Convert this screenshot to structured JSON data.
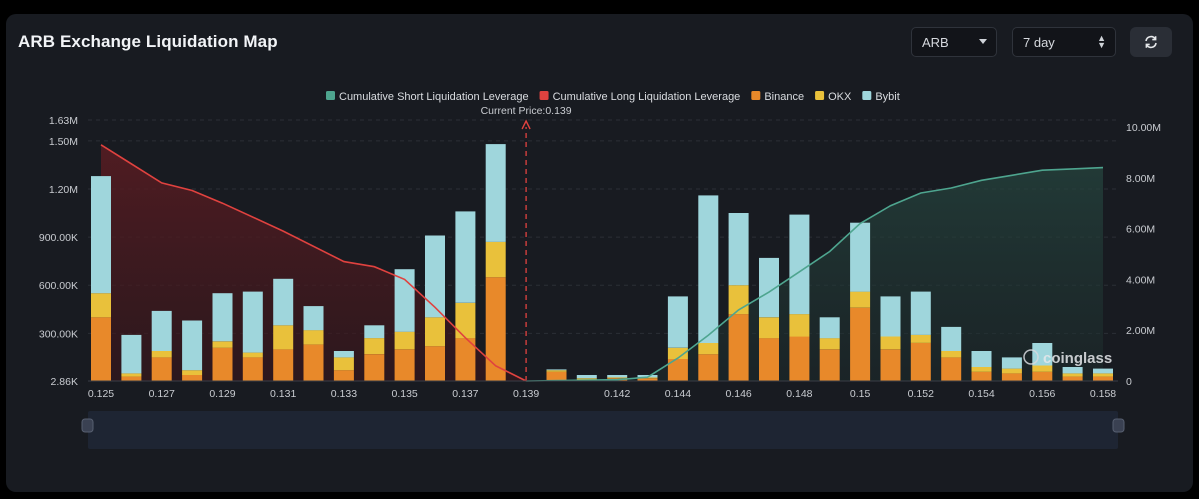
{
  "header": {
    "title": "ARB Exchange Liquidation Map",
    "asset_select": "ARB",
    "range_select": "7 day"
  },
  "colors": {
    "binance": "#e8892a",
    "okx": "#e9c13b",
    "bybit": "#9fd6dc",
    "short_line": "#4ea58f",
    "long_line": "#e0423f",
    "background": "#181b21"
  },
  "icons": {
    "asset_caret": "chevron-down-icon",
    "range_caret": "up-down-icon",
    "refresh": "refresh-icon"
  },
  "watermark": "coinglass",
  "chart_data": {
    "type": "bar",
    "stacked": true,
    "current_price": 0.139,
    "current_price_label": "Current Price:0.139",
    "legend_position": "top-center",
    "grid": true,
    "x": [
      0.125,
      0.126,
      0.127,
      0.128,
      0.129,
      0.13,
      0.131,
      0.132,
      0.133,
      0.134,
      0.135,
      0.136,
      0.137,
      0.138,
      0.139,
      0.14,
      0.141,
      0.142,
      0.143,
      0.144,
      0.145,
      0.146,
      0.147,
      0.148,
      0.149,
      0.15,
      0.151,
      0.152,
      0.153,
      0.154,
      0.155,
      0.156,
      0.157,
      0.158
    ],
    "x_tick_labels": [
      "0.125",
      "0.127",
      "0.129",
      "0.131",
      "0.133",
      "0.135",
      "0.137",
      "0.139",
      "0.142",
      "0.144",
      "0.146",
      "0.148",
      "0.15",
      "0.152",
      "0.154",
      "0.156",
      "0.158"
    ],
    "y_left": {
      "ticks": [
        "2.86K",
        "300.00K",
        "600.00K",
        "900.00K",
        "1.20M",
        "1.50M",
        "1.63M"
      ],
      "tick_values": [
        2860,
        300000,
        600000,
        900000,
        1200000,
        1500000,
        1630000
      ],
      "range": [
        2860,
        1630000
      ]
    },
    "y_right": {
      "ticks": [
        "0",
        "2.00M",
        "4.00M",
        "6.00M",
        "8.00M",
        "10.00M"
      ],
      "range": [
        0,
        10000000
      ]
    },
    "legend": [
      "Cumulative Short Liquidation Leverage",
      "Cumulative Long Liquidation Leverage",
      "Binance",
      "OKX",
      "Bybit"
    ],
    "series": [
      {
        "name": "Binance",
        "values": [
          400000,
          30000,
          150000,
          40000,
          210000,
          150000,
          200000,
          230000,
          70000,
          170000,
          200000,
          220000,
          270000,
          650000,
          0,
          60000,
          10000,
          20000,
          20000,
          140000,
          170000,
          420000,
          270000,
          280000,
          200000,
          460000,
          200000,
          240000,
          150000,
          60000,
          50000,
          60000,
          30000,
          30000
        ]
      },
      {
        "name": "OKX",
        "values": [
          150000,
          20000,
          40000,
          30000,
          40000,
          30000,
          150000,
          90000,
          80000,
          100000,
          110000,
          180000,
          220000,
          220000,
          0,
          10000,
          10000,
          5000,
          5000,
          70000,
          70000,
          180000,
          130000,
          140000,
          70000,
          100000,
          80000,
          50000,
          40000,
          30000,
          30000,
          40000,
          20000,
          20000
        ]
      },
      {
        "name": "Bybit",
        "values": [
          730000,
          240000,
          250000,
          310000,
          300000,
          380000,
          290000,
          150000,
          40000,
          80000,
          390000,
          510000,
          570000,
          610000,
          0,
          5000,
          20000,
          15000,
          15000,
          320000,
          920000,
          450000,
          370000,
          620000,
          130000,
          430000,
          250000,
          270000,
          150000,
          100000,
          70000,
          140000,
          40000,
          30000
        ]
      },
      {
        "name": "Cumulative Long Liquidation Leverage",
        "axis": "right",
        "x": [
          0.125,
          0.127,
          0.128,
          0.129,
          0.131,
          0.133,
          0.134,
          0.135,
          0.136,
          0.137,
          0.138,
          0.139
        ],
        "values": [
          9300000,
          7800000,
          7500000,
          7000000,
          5900000,
          4700000,
          4500000,
          4000000,
          2900000,
          1700000,
          600000,
          0
        ]
      },
      {
        "name": "Cumulative Short Liquidation Leverage",
        "axis": "right",
        "x": [
          0.139,
          0.142,
          0.143,
          0.144,
          0.145,
          0.146,
          0.147,
          0.148,
          0.149,
          0.15,
          0.151,
          0.152,
          0.153,
          0.154,
          0.155,
          0.156,
          0.157,
          0.158
        ],
        "values": [
          0,
          50000,
          150000,
          900000,
          1800000,
          2800000,
          3500000,
          4300000,
          5100000,
          6200000,
          6900000,
          7400000,
          7600000,
          7900000,
          8100000,
          8300000,
          8350000,
          8400000
        ]
      }
    ]
  }
}
